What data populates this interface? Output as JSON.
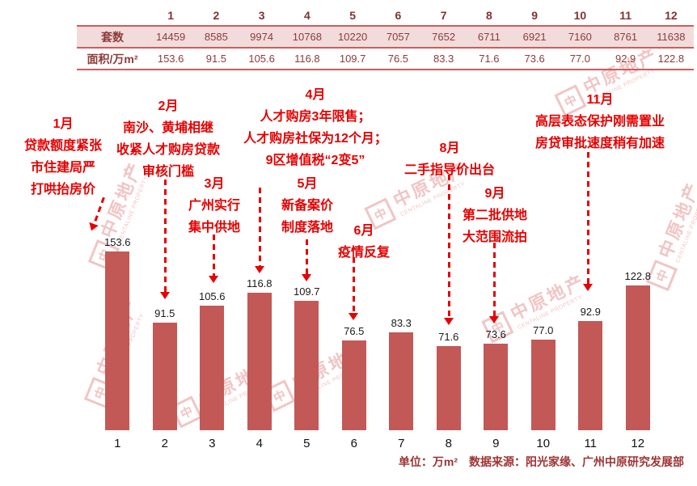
{
  "table": {
    "month_header": [
      "1",
      "2",
      "3",
      "4",
      "5",
      "6",
      "7",
      "8",
      "9",
      "10",
      "11",
      "12"
    ],
    "rows": [
      {
        "label": "套数",
        "values": [
          "14459",
          "8585",
          "9974",
          "10768",
          "10220",
          "7057",
          "7652",
          "6711",
          "6921",
          "7160",
          "8761",
          "11638"
        ]
      },
      {
        "label": "面积/万m²",
        "values": [
          "153.6",
          "91.5",
          "105.6",
          "116.8",
          "109.7",
          "76.5",
          "83.3",
          "71.6",
          "73.6",
          "77.0",
          "92.9",
          "122.8"
        ]
      }
    ]
  },
  "chart_data": {
    "type": "bar",
    "categories": [
      "1",
      "2",
      "3",
      "4",
      "5",
      "6",
      "7",
      "8",
      "9",
      "10",
      "11",
      "12"
    ],
    "series": [
      {
        "name": "套数",
        "values": [
          14459,
          8585,
          9974,
          10768,
          10220,
          7057,
          7652,
          6711,
          6921,
          7160,
          8761,
          11638
        ]
      },
      {
        "name": "面积/万m²",
        "values": [
          153.6,
          91.5,
          105.6,
          116.8,
          109.7,
          76.5,
          83.3,
          71.6,
          73.6,
          77.0,
          92.9,
          122.8
        ]
      }
    ],
    "plotted_series": "面积/万m²",
    "ylim": [
      0,
      165
    ],
    "grid": false,
    "legend": "none",
    "bar_color": "#c25956",
    "data_labels": true,
    "annotations": [
      {
        "month": "1月",
        "lines": [
          "贷款额度紧张",
          "市住建局严",
          "打哄抬房价"
        ]
      },
      {
        "month": "2月",
        "lines": [
          "南沙、黄埔相继",
          "收紧人才购房贷款",
          "审核门槛"
        ]
      },
      {
        "month": "3月",
        "lines": [
          "广州实行",
          "集中供地"
        ]
      },
      {
        "month": "4月",
        "lines": [
          "人才购房3年限售；",
          "人才购房社保为12个月；",
          "9区增值税“2变5”"
        ]
      },
      {
        "month": "5月",
        "lines": [
          "新备案价",
          "制度落地"
        ]
      },
      {
        "month": "6月",
        "lines": [
          "疫情反复"
        ]
      },
      {
        "month": "8月",
        "lines": [
          "二手指导价出台"
        ]
      },
      {
        "month": "9月",
        "lines": [
          "第二批供地",
          "大范围流拍"
        ]
      },
      {
        "month": "11月",
        "lines": [
          "高层表态保护刚需置业",
          "房贷审批速度稍有加速"
        ]
      }
    ]
  },
  "footer": {
    "unit": "单位：万m²",
    "source": "数据来源：阳光家缘、广州中原研究发展部"
  },
  "watermark": {
    "cn": "中原地产",
    "en": "CENTALINE PROPERTY",
    "logo_glyph": "中"
  },
  "colors": {
    "bar": "#c25956",
    "table_line": "#d05c5c",
    "units_row_bg": "#f2dcdb",
    "table_text": "#8e3a3a",
    "annotation": "#e60000",
    "footer_text": "#9e3333",
    "watermark": "#f0bfbf"
  }
}
